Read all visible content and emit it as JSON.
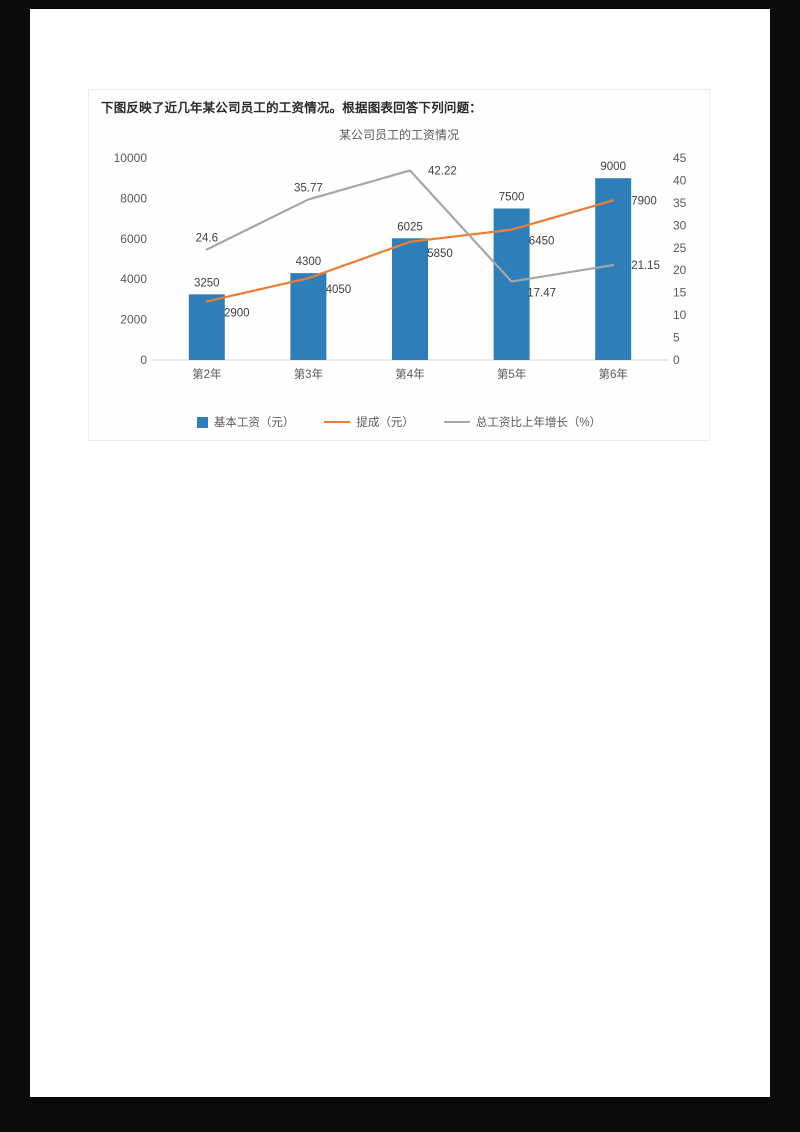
{
  "page": {
    "question_text": "下图反映了近几年某公司员工的工资情况。根据图表回答下列问题："
  },
  "chart_data": {
    "type": "bar",
    "title": "某公司员工的工资情况",
    "categories": [
      "第2年",
      "第3年",
      "第4年",
      "第5年",
      "第6年"
    ],
    "series": [
      {
        "name": "基本工资（元）",
        "kind": "bar",
        "axis": "left",
        "color": "#2e7fb9",
        "values": [
          3250,
          4300,
          6025,
          7500,
          9000
        ],
        "label_placement": [
          "above",
          "above",
          "above",
          "above",
          "above"
        ]
      },
      {
        "name": "提成（元）",
        "kind": "line",
        "axis": "left",
        "color": "#ed7d31",
        "values": [
          2900,
          4050,
          5850,
          6450,
          7900
        ],
        "label_placement": [
          "below-right",
          "below-right",
          "below-right",
          "below-right",
          "right"
        ]
      },
      {
        "name": "总工资比上年增长（%）",
        "kind": "line",
        "axis": "right",
        "color": "#a6a6a6",
        "values": [
          24.6,
          35.77,
          42.22,
          17.47,
          21.15
        ],
        "label_placement": [
          "above",
          "above",
          "right",
          "below-right",
          "right"
        ]
      }
    ],
    "left_axis": {
      "min": 0,
      "max": 10000,
      "ticks": [
        0,
        2000,
        4000,
        6000,
        8000,
        10000
      ]
    },
    "right_axis": {
      "min": 0,
      "max": 45,
      "ticks": [
        0,
        5,
        10,
        15,
        20,
        25,
        30,
        35,
        40,
        45
      ]
    },
    "grid": false,
    "legend_position": "bottom",
    "axis_label_color": "#595959",
    "data_label_color": "#3f3f3f",
    "baseline_color": "#d9d9d9"
  }
}
